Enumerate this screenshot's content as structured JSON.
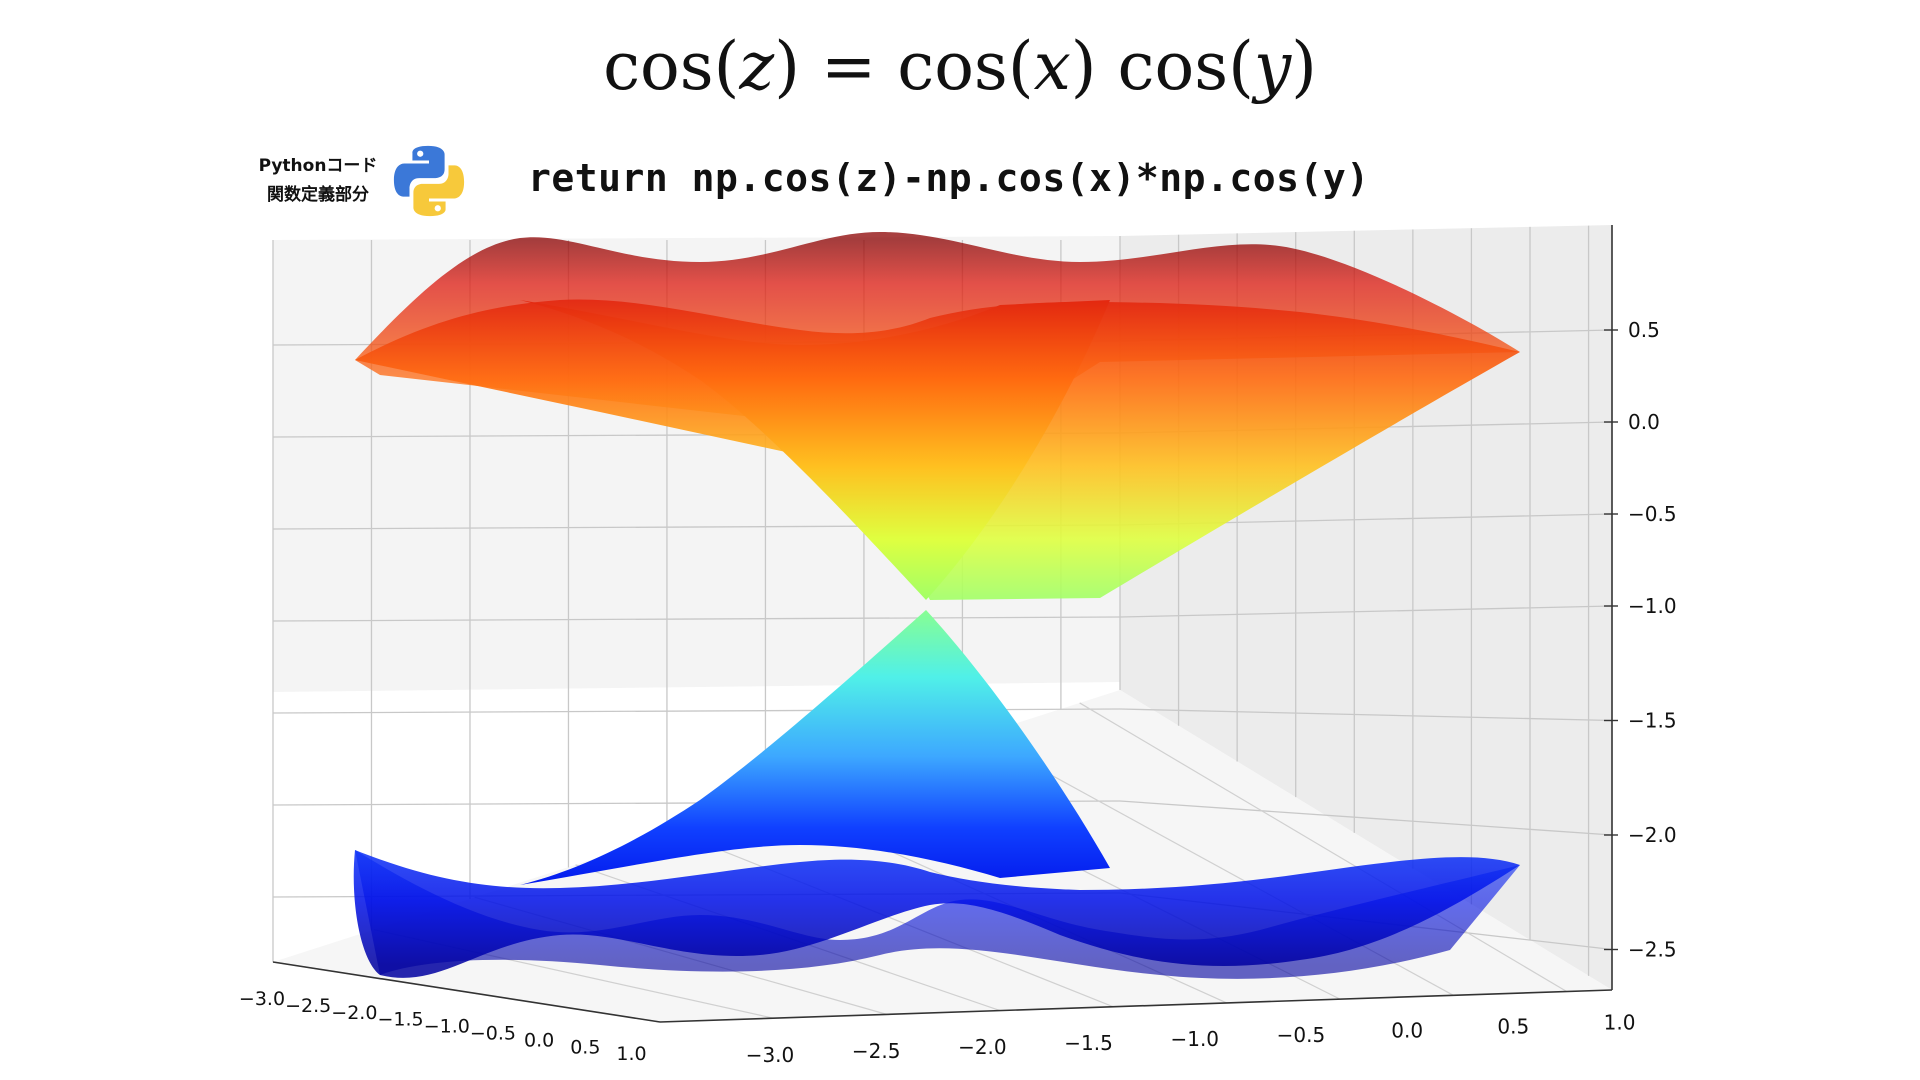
{
  "header": {
    "equation": {
      "lhs_fn": "cos",
      "lhs_var": "z",
      "eq": "=",
      "rhs1_fn": "cos",
      "rhs1_var": "x",
      "rhs2_fn": "cos",
      "rhs2_var": "y"
    },
    "side_label_line1": "Pythonコード",
    "side_label_line2": "関数定義部分",
    "code": "return np.cos(z)-np.cos(x)*np.cos(y)",
    "logo_icon": "python-logo-icon",
    "logo_colors": {
      "blue": "#3b78d8",
      "yellow": "#f7c93b"
    }
  },
  "chart_data": {
    "type": "surface",
    "function": "cos(z) = cos(x) cos(y)",
    "colormap": "jet",
    "x_ticks": [
      "−3.0",
      "−2.5",
      "−2.0",
      "−1.5",
      "−1.0",
      "−0.5",
      "0.0",
      "0.5",
      "1.0"
    ],
    "y_ticks": [
      "−3.0",
      "−2.5",
      "−2.0",
      "−1.5",
      "−1.0",
      "−0.5",
      "0.0",
      "0.5",
      "1.0"
    ],
    "z_ticks": [
      "0.5",
      "0.0",
      "−0.5",
      "−1.0",
      "−1.5",
      "−2.0",
      "−2.5"
    ],
    "xlim": [
      -3.14,
      1.0
    ],
    "ylim": [
      -3.14,
      1.0
    ],
    "zlim": [
      -3.0,
      1.0
    ],
    "surfaces": [
      {
        "name": "",
        "z_range": [
          -0.93,
          0.96
        ]
      },
      {
        "name": "",
        "z_range": [
          -2.96,
          -1.03
        ]
      }
    ],
    "grid": true
  }
}
